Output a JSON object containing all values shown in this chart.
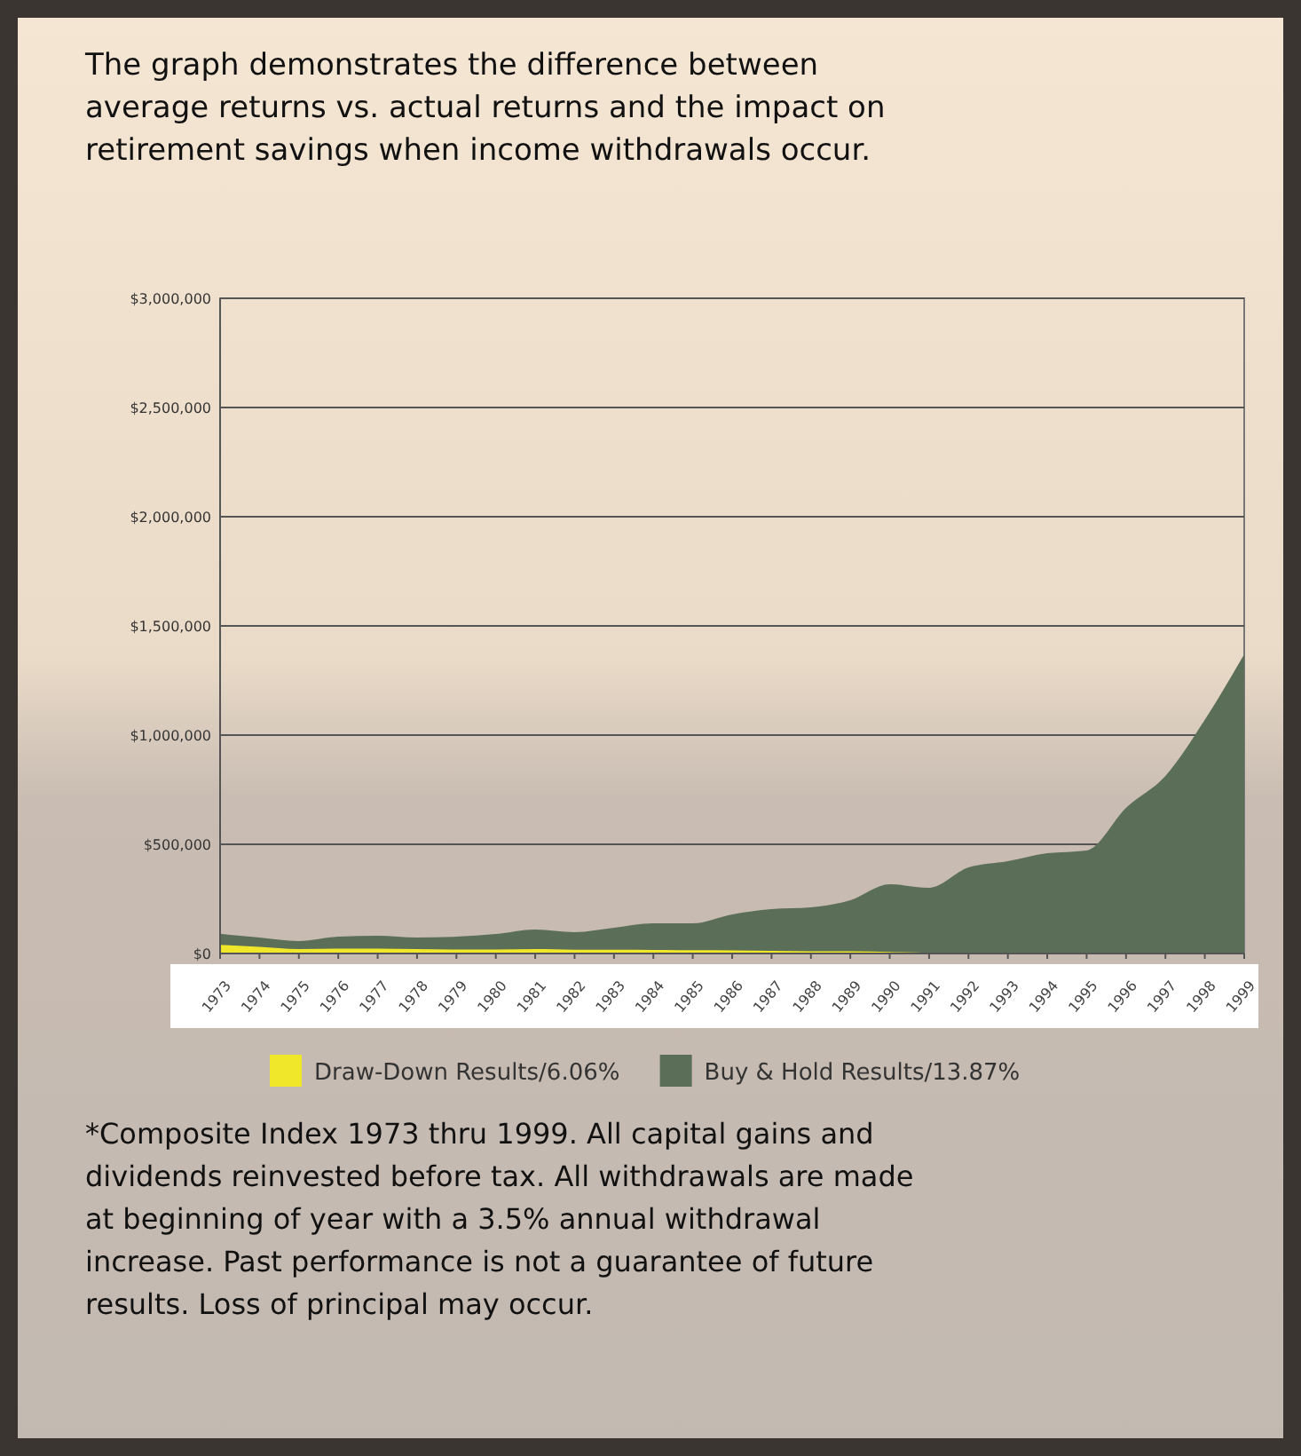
{
  "chart_data": {
    "type": "area",
    "title": "The graph demonstrates the difference between average returns vs. actual returns and the impact on retirement savings when income withdrawals occur.",
    "x": [
      1973,
      1974,
      1975,
      1976,
      1977,
      1978,
      1979,
      1980,
      1981,
      1982,
      1983,
      1984,
      1985,
      1986,
      1987,
      1988,
      1989,
      1990,
      1991,
      1992,
      1993,
      1994,
      1995,
      1996,
      1997,
      1998,
      1999
    ],
    "series": [
      {
        "name": "Buy & Hold Results/13.87%",
        "color": "#5b6e58",
        "values": [
          90000,
          73000,
          57000,
          77000,
          81000,
          73000,
          77000,
          89000,
          110000,
          98000,
          118000,
          138000,
          138000,
          179000,
          203000,
          211000,
          244000,
          317000,
          301000,
          394000,
          423000,
          459000,
          472000,
          667000,
          813000,
          1070000,
          1370000
        ]
      },
      {
        "name": "Draw-Down Results/6.06%",
        "color": "#f0e62a",
        "values": [
          40000,
          30000,
          20000,
          22000,
          22000,
          20000,
          18000,
          18000,
          20000,
          17000,
          17000,
          16000,
          15000,
          14000,
          12000,
          10000,
          10000,
          7000,
          3000,
          0,
          0,
          0,
          0,
          0,
          0,
          0,
          0
        ]
      }
    ],
    "xlim": [
      1973,
      1999
    ],
    "xticks": [
      1973,
      1974,
      1975,
      1976,
      1977,
      1978,
      1979,
      1980,
      1981,
      1982,
      1983,
      1984,
      1985,
      1986,
      1987,
      1988,
      1989,
      1990,
      1991,
      1992,
      1993,
      1994,
      1995,
      1996,
      1997,
      1998,
      1999
    ],
    "ylim": [
      0,
      3000000
    ],
    "yticks": [
      {
        "value": 0,
        "label": "$0"
      },
      {
        "value": 500000,
        "label": "$500,000"
      },
      {
        "value": 1000000,
        "label": "$1,000,000"
      },
      {
        "value": 1500000,
        "label": "$1,500,000"
      },
      {
        "value": 2000000,
        "label": "$2,000,000"
      },
      {
        "value": 2500000,
        "label": "$2,500,000"
      },
      {
        "value": 3000000,
        "label": "$3,000,000"
      }
    ],
    "grid": "y",
    "legend": "bottom",
    "annotations": [
      "*Composite Index 1973 thru 1999. All capital gains and dividends reinvested before tax.  All withdrawals are made at beginning of year with a 3.5% annual withdrawal increase. Past performance is not a guarantee of future results.  Loss of principal may occur."
    ]
  }
}
